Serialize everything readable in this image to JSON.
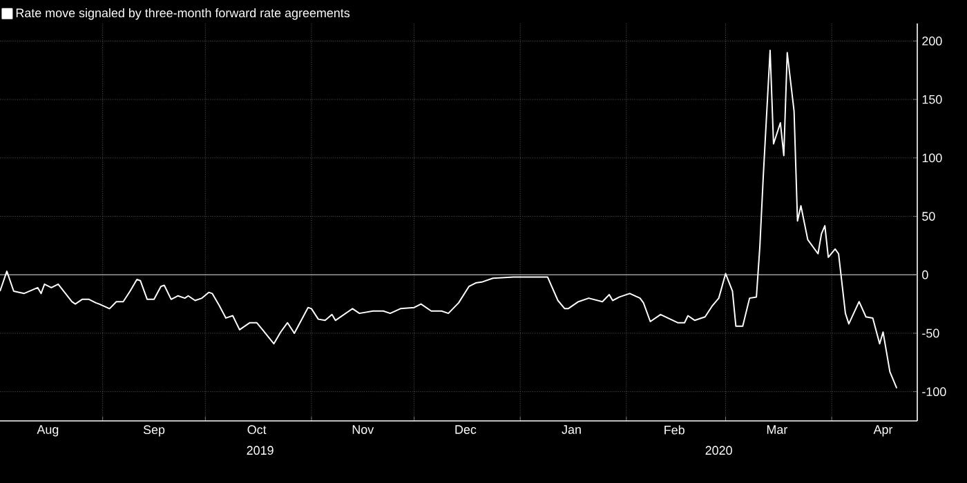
{
  "chart_data": {
    "type": "line",
    "x": [
      "2019-08-02",
      "2019-08-04",
      "2019-08-06",
      "2019-08-09",
      "2019-08-13",
      "2019-08-14",
      "2019-08-15",
      "2019-08-17",
      "2019-08-19",
      "2019-08-23",
      "2019-08-24",
      "2019-08-26",
      "2019-08-28",
      "2019-08-30",
      "2019-08-31",
      "2019-09-03",
      "2019-09-05",
      "2019-09-07",
      "2019-09-09",
      "2019-09-11",
      "2019-09-12",
      "2019-09-14",
      "2019-09-16",
      "2019-09-18",
      "2019-09-19",
      "2019-09-21",
      "2019-09-23",
      "2019-09-25",
      "2019-09-26",
      "2019-09-28",
      "2019-09-30",
      "2019-10-02",
      "2019-10-03",
      "2019-10-05",
      "2019-10-07",
      "2019-10-09",
      "2019-10-11",
      "2019-10-14",
      "2019-10-16",
      "2019-10-18",
      "2019-10-21",
      "2019-10-23",
      "2019-10-25",
      "2019-10-27",
      "2019-10-31",
      "2019-11-01",
      "2019-11-03",
      "2019-11-05",
      "2019-11-07",
      "2019-11-08",
      "2019-11-13",
      "2019-11-15",
      "2019-11-19",
      "2019-11-22",
      "2019-11-24",
      "2019-11-27",
      "2019-12-01",
      "2019-12-03",
      "2019-12-06",
      "2019-12-09",
      "2019-12-11",
      "2019-12-14",
      "2019-12-17",
      "2019-12-19",
      "2019-12-21",
      "2019-12-24",
      "2019-12-30",
      "2020-01-02",
      "2020-01-09",
      "2020-01-12",
      "2020-01-14",
      "2020-01-15",
      "2020-01-18",
      "2020-01-21",
      "2020-01-25",
      "2020-01-27",
      "2020-01-28",
      "2020-01-30",
      "2020-02-02",
      "2020-02-05",
      "2020-02-06",
      "2020-02-08",
      "2020-02-11",
      "2020-02-16",
      "2020-02-18",
      "2020-02-19",
      "2020-02-21",
      "2020-02-24",
      "2020-02-26",
      "2020-02-28",
      "2020-03-01",
      "2020-03-03",
      "2020-03-04",
      "2020-03-06",
      "2020-03-08",
      "2020-03-10",
      "2020-03-11",
      "2020-03-12",
      "2020-03-14",
      "2020-03-15",
      "2020-03-17",
      "2020-03-18",
      "2020-03-19",
      "2020-03-21",
      "2020-03-22",
      "2020-03-23",
      "2020-03-25",
      "2020-03-28",
      "2020-03-29",
      "2020-03-30",
      "2020-03-31",
      "2020-04-02",
      "2020-04-03",
      "2020-04-05",
      "2020-04-06",
      "2020-04-09",
      "2020-04-11",
      "2020-04-13",
      "2020-04-15",
      "2020-04-16",
      "2020-04-18",
      "2020-04-20"
    ],
    "series": [
      {
        "name": "Rate move signaled by three-month forward rate agreements",
        "color": "#ffffff",
        "values": [
          -14,
          3,
          -14,
          -16,
          -11,
          -16,
          -8,
          -11,
          -8,
          -23,
          -25,
          -21,
          -21,
          -24,
          -25,
          -29,
          -23,
          -23,
          -14,
          -4,
          -5,
          -21,
          -21,
          -10,
          -9,
          -21,
          -18,
          -20,
          -18,
          -22,
          -20,
          -15,
          -16,
          -26,
          -37,
          -35,
          -47,
          -41,
          -41,
          -48,
          -59,
          -49,
          -41,
          -50,
          -28,
          -29,
          -38,
          -39,
          -34,
          -39,
          -29,
          -33,
          -31,
          -31,
          -33,
          -29,
          -28,
          -25,
          -31,
          -31,
          -33,
          -24,
          -10,
          -7,
          -6,
          -3,
          -2,
          -2,
          -2,
          -22,
          -29,
          -29,
          -23,
          -20,
          -23,
          -17,
          -22,
          -19,
          -16,
          -20,
          -24,
          -40,
          -34,
          -41,
          -41,
          -35,
          -39,
          -36,
          -27,
          -20,
          1,
          -14,
          -44,
          -44,
          -20,
          -19,
          24,
          84,
          192,
          112,
          130,
          102,
          190,
          140,
          46,
          59,
          30,
          18,
          35,
          42,
          15,
          22,
          18,
          -33,
          -42,
          -23,
          -36,
          -37,
          -59,
          -49,
          -83,
          -97
        ]
      }
    ],
    "xlim": [
      "2019-08-02",
      "2020-04-26"
    ],
    "xticks": [
      {
        "value": "2019-09-01",
        "label": null
      },
      {
        "value": "2019-10-01",
        "label": null
      },
      {
        "value": "2019-11-01",
        "label": null
      },
      {
        "value": "2019-12-01",
        "label": null
      },
      {
        "value": "2020-01-01",
        "label": null
      },
      {
        "value": "2020-02-01",
        "label": null
      },
      {
        "value": "2020-03-01",
        "label": null
      },
      {
        "value": "2020-04-01",
        "label": null
      },
      {
        "value": "2019-08-16",
        "label": "Aug"
      },
      {
        "value": "2019-09-16",
        "label": "Sep"
      },
      {
        "value": "2019-10-16",
        "label": "Oct"
      },
      {
        "value": "2019-11-16",
        "label": "Nov"
      },
      {
        "value": "2019-12-16",
        "label": "Dec"
      },
      {
        "value": "2020-01-16",
        "label": "Jan"
      },
      {
        "value": "2020-02-15",
        "label": "Feb"
      },
      {
        "value": "2020-03-16",
        "label": "Mar"
      },
      {
        "value": "2020-04-16",
        "label": "Apr"
      }
    ],
    "ylim": [
      -125,
      215
    ],
    "yticks": [
      -100,
      -50,
      0,
      50,
      100,
      150,
      200
    ],
    "ref_lines": [
      {
        "axis": "y",
        "value": 0,
        "color": "#9a9a9a"
      }
    ],
    "annotations": [
      "2019",
      "2020"
    ],
    "grid": true,
    "legend": "top left"
  }
}
